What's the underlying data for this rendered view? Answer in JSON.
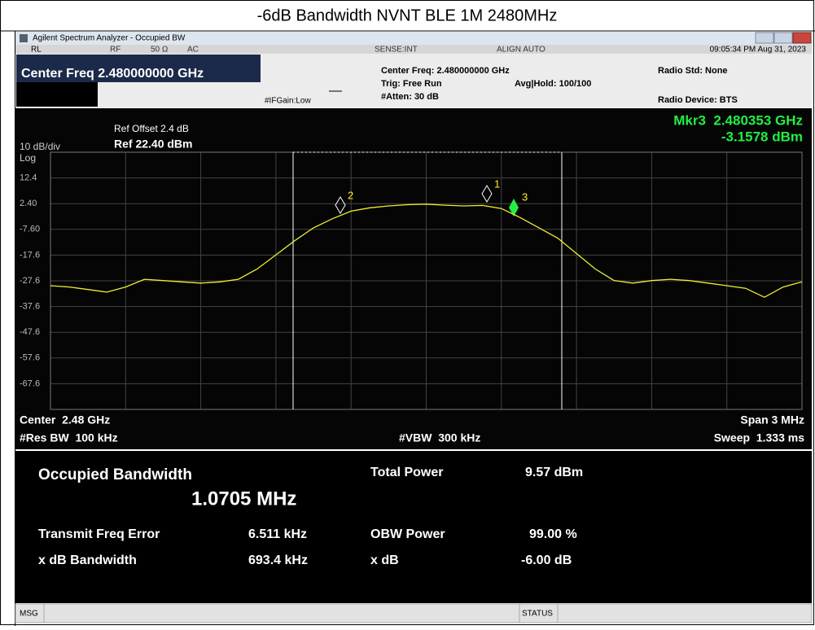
{
  "header": {
    "title": "-6dB Bandwidth NVNT BLE 1M 2480MHz"
  },
  "window": {
    "title": "Agilent Spectrum Analyzer - Occupied BW"
  },
  "status_row": {
    "rl": "RL",
    "rf": "RF",
    "impedance": "50 Ω",
    "coupling": "AC",
    "sense": "SENSE:INT",
    "align": "ALIGN AUTO",
    "timestamp": "09:05:34 PM Aug 31, 2023"
  },
  "settings": {
    "center_freq_big": "Center Freq 2.480000000 GHz",
    "if_gain": "#IFGain:Low",
    "center_freq": "Center Freq: 2.480000000 GHz",
    "trig": "Trig: Free Run",
    "avg_hold": "Avg|Hold: 100/100",
    "atten": "#Atten: 30 dB",
    "radio_std": "Radio Std: None",
    "radio_device": "Radio Device: BTS"
  },
  "display": {
    "ref_offset": "Ref Offset 2.4 dB",
    "scale": "10 dB/div",
    "ref_level": "Ref 22.40 dBm",
    "log": "Log",
    "marker_freq": "Mkr3  2.480353 GHz",
    "marker_level": "-3.1578 dBm",
    "y_labels": [
      "12.4",
      "2.40",
      "-7.60",
      "-17.6",
      "-27.6",
      "-37.6",
      "-47.6",
      "-57.6",
      "-67.6"
    ],
    "markers": [
      "1",
      "2",
      "3"
    ],
    "center": "Center  2.48 GHz",
    "res_bw": "#Res BW  100 kHz",
    "vbw": "#VBW  300 kHz",
    "span": "Span 3 MHz",
    "sweep": "Sweep  1.333 ms",
    "trace": {
      "ylim": [
        -77.6,
        22.4
      ],
      "values": [
        -29.5,
        -30,
        -31,
        -32,
        -30,
        -27,
        -27.5,
        -28,
        -28.5,
        -28,
        -27,
        -23,
        -17.5,
        -12,
        -7,
        -3.5,
        -0.5,
        0.8,
        1.5,
        2,
        2.2,
        1.8,
        1.5,
        1.7,
        0.5,
        -3,
        -7,
        -11,
        -17,
        -23,
        -27.5,
        -28.5,
        -27.5,
        -27,
        -27.5,
        -28.5,
        -29.5,
        -30.5,
        -34,
        -30,
        -28
      ]
    }
  },
  "results": {
    "obw_label": "Occupied Bandwidth",
    "obw_value": "1.0705 MHz",
    "total_power_label": "Total Power",
    "total_power_value": "9.57 dBm",
    "tx_freq_error_label": "Transmit Freq Error",
    "tx_freq_error_value": "6.511 kHz",
    "obw_power_label": "OBW Power",
    "obw_power_value": "99.00 %",
    "xdb_bw_label": "x dB Bandwidth",
    "xdb_bw_value": "693.4 kHz",
    "xdb_label": "x dB",
    "xdb_value": "-6.00 dB"
  },
  "status_bar": {
    "msg": "MSG",
    "status": "STATUS"
  }
}
